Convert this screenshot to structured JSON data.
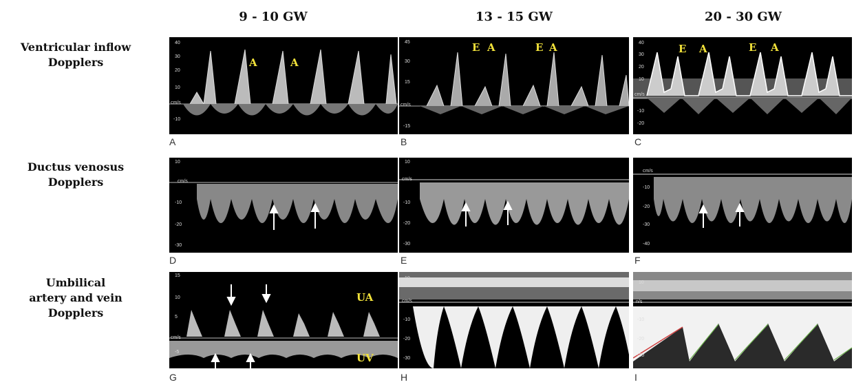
{
  "columns": [
    "9 - 10  GW",
    "13 - 15  GW",
    "20 - 30  GW"
  ],
  "rows": [
    {
      "label_line1": "Ventricular inflow",
      "label_line2": "Dopplers",
      "label_line3": ""
    },
    {
      "label_line1": "Ductus venosus",
      "label_line2": "Dopplers",
      "label_line3": ""
    },
    {
      "label_line1": "Umbilical",
      "label_line2": "artery and vein",
      "label_line3": "Dopplers"
    }
  ],
  "panels": {
    "A": {
      "letter": "A",
      "labels": [
        "A",
        "A"
      ],
      "ticks": [
        "40",
        "30",
        "20",
        "10",
        "cm/s",
        "-10"
      ]
    },
    "B": {
      "letter": "B",
      "labels": [
        "E",
        "A",
        "E",
        "A"
      ],
      "ticks": [
        "45",
        "30",
        "15",
        "cm/s",
        "-15"
      ]
    },
    "C": {
      "letter": "C",
      "labels": [
        "E",
        "A",
        "E",
        "A"
      ],
      "ticks": [
        "40",
        "30",
        "20",
        "10",
        "cm/s",
        "-10",
        "-20"
      ]
    },
    "D": {
      "letter": "D",
      "ticks": [
        "10",
        "cm/s",
        "-10",
        "-20",
        "-30"
      ]
    },
    "E": {
      "letter": "E",
      "ticks": [
        "10",
        "cm/s",
        "-10",
        "-20",
        "-30"
      ]
    },
    "F": {
      "letter": "F",
      "ticks": [
        "cm/s",
        "-10",
        "-20",
        "-30",
        "-40"
      ]
    },
    "G": {
      "letter": "G",
      "labels": [
        "UA",
        "UV"
      ],
      "ticks": [
        "15",
        "10",
        "5",
        "cm/s",
        "-5"
      ]
    },
    "H": {
      "letter": "H",
      "ticks": [
        "10",
        "cm/s",
        "-10",
        "-20",
        "-30"
      ]
    },
    "I": {
      "letter": "I",
      "ticks": [
        "10",
        "n/s",
        "-10",
        "-20",
        "-30"
      ]
    }
  }
}
